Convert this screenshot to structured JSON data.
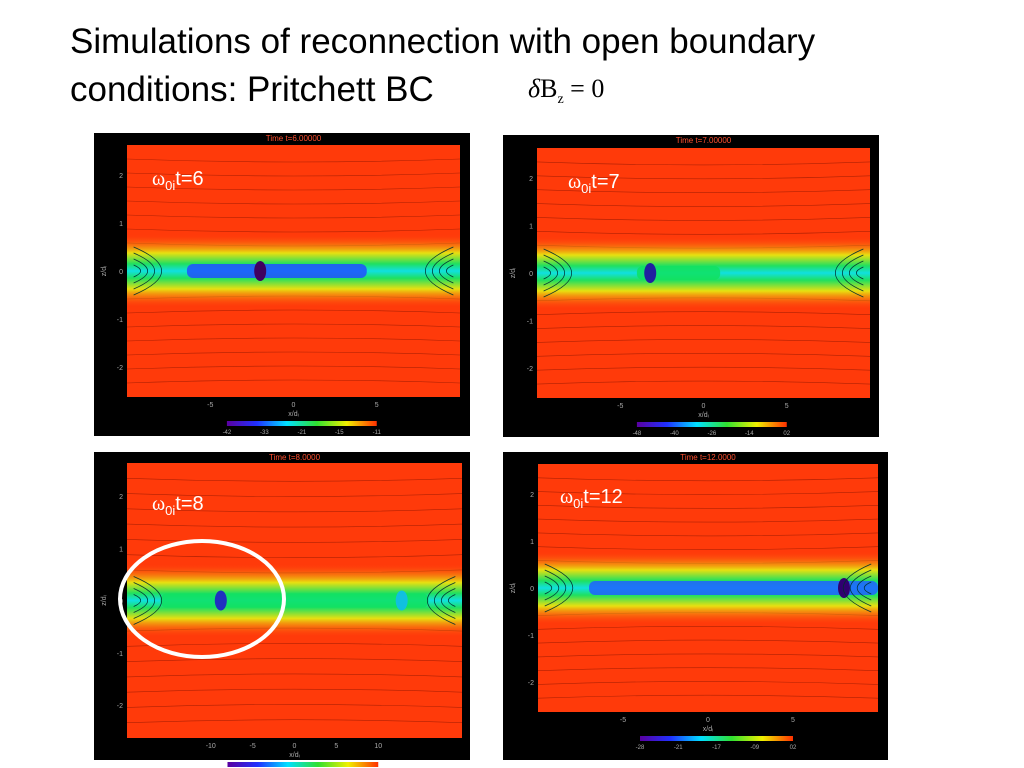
{
  "title": {
    "line1": "Simulations of reconnection with open boundary",
    "line2": "conditions: Pritchett BC"
  },
  "formula": {
    "delta": "δ",
    "symbol": "B",
    "subscript": "z",
    "rest": " = 0"
  },
  "panels": [
    {
      "time_label": "Time t=6.00000",
      "omega": "ω",
      "omega_sub": "0i",
      "omega_text": "t=6",
      "x_ticks": [
        "-5",
        "0",
        "5"
      ],
      "y_ticks": [
        "2",
        "1",
        "0",
        "-1",
        "-2"
      ],
      "x_label": "x/dᵢ",
      "y_label": "z/dᵢ",
      "colorbar_ticks": [
        "-42",
        "-33",
        "-21",
        "-15",
        "-11"
      ]
    },
    {
      "time_label": "Time t=7.00000",
      "omega": "ω",
      "omega_sub": "0i",
      "omega_text": "t=7",
      "x_ticks": [
        "-5",
        "0",
        "5"
      ],
      "y_ticks": [
        "2",
        "1",
        "0",
        "-1",
        "-2"
      ],
      "x_label": "x/dᵢ",
      "y_label": "z/dᵢ",
      "colorbar_ticks": [
        "-48",
        "-40",
        "-26",
        "-14",
        "02"
      ]
    },
    {
      "time_label": "Time t=8.0000",
      "omega": "ω",
      "omega_sub": "0i",
      "omega_text": "t=8",
      "x_ticks": [
        "-10",
        "-5",
        "0",
        "5",
        "10"
      ],
      "y_ticks": [
        "2",
        "1",
        "0",
        "-1",
        "-2"
      ],
      "x_label": "x/dᵢ",
      "y_label": "z/dᵢ",
      "colorbar_ticks": []
    },
    {
      "time_label": "Time t=12.0000",
      "omega": "ω",
      "omega_sub": "0i",
      "omega_text": "t=12",
      "x_ticks": [
        "-5",
        "0",
        "5"
      ],
      "y_ticks": [
        "2",
        "1",
        "0",
        "-1",
        "-2"
      ],
      "x_label": "x/dᵢ",
      "y_label": "z/dᵢ",
      "colorbar_ticks": [
        "-28",
        "-21",
        "-17",
        "-09",
        "02"
      ]
    }
  ]
}
